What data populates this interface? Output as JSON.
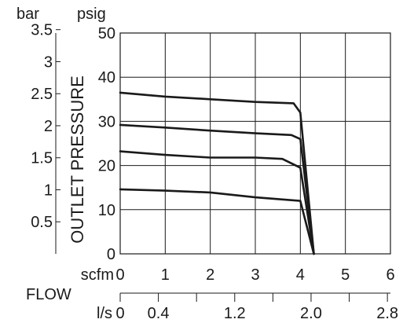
{
  "chart_data": {
    "type": "line",
    "ylabel": "OUTLET PRESSURE",
    "xlabel": "FLOW",
    "units": {
      "psig": "psig",
      "bar": "bar",
      "scfm": "scfm",
      "ls": "l/s"
    },
    "xlim": [
      0,
      6
    ],
    "ylim": [
      0,
      50
    ],
    "psig_ticks": [
      "0",
      "10",
      "20",
      "30",
      "40",
      "50"
    ],
    "bar_ticks": [
      {
        "label": "0.5",
        "value": 0.5
      },
      {
        "label": "1",
        "value": 1
      },
      {
        "label": "1.5",
        "value": 1.5
      },
      {
        "label": "2",
        "value": 2
      },
      {
        "label": "2.5",
        "value": 2.5
      },
      {
        "label": "3",
        "value": 3
      },
      {
        "label": "3.5",
        "value": 3.5
      }
    ],
    "scfm_ticks": [
      "0",
      "1",
      "2",
      "3",
      "4",
      "5",
      "6"
    ],
    "ls_ticks": [
      {
        "label": "0",
        "value": 0
      },
      {
        "label": "0.4",
        "value": 0.4
      },
      {
        "label": "1.2",
        "value": 1.2
      },
      {
        "label": "2.0",
        "value": 2.0
      },
      {
        "label": "2.8",
        "value": 2.8
      }
    ],
    "ls_minor": [
      0.8,
      1.6,
      2.4
    ],
    "series": [
      {
        "x": [
          0,
          1,
          2,
          3,
          3.85,
          4.0,
          4.3
        ],
        "y": [
          36.5,
          35.6,
          35.0,
          34.4,
          34.1,
          32.0,
          0
        ]
      },
      {
        "x": [
          0,
          1,
          2,
          3,
          3.8,
          4.0,
          4.3
        ],
        "y": [
          29.2,
          28.6,
          27.9,
          27.3,
          26.9,
          26.0,
          0
        ]
      },
      {
        "x": [
          0,
          1,
          2,
          3,
          3.6,
          4.0,
          4.3
        ],
        "y": [
          23.2,
          22.4,
          21.8,
          21.8,
          21.5,
          19.5,
          0
        ]
      },
      {
        "x": [
          0,
          1,
          2,
          3,
          4.0,
          4.3
        ],
        "y": [
          14.6,
          14.3,
          13.9,
          12.8,
          12.0,
          0
        ]
      }
    ]
  }
}
